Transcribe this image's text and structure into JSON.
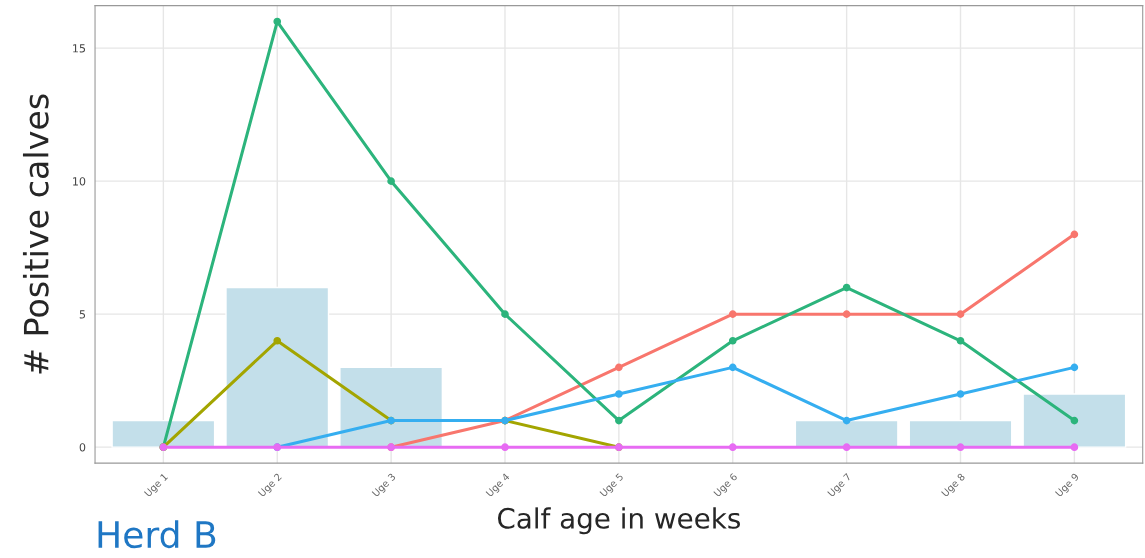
{
  "chart_data": {
    "type": "line",
    "xlabel": "Calf age in weeks",
    "ylabel": "# Positive calves",
    "categories": [
      "Uge 1",
      "Uge 2",
      "Uge 3",
      "Uge 4",
      "Uge 5",
      "Uge 6",
      "Uge 7",
      "Uge 8",
      "Uge 9"
    ],
    "series": [
      {
        "type": "bar",
        "color": "#c3dfea",
        "values": [
          1,
          6,
          3,
          0,
          0,
          0,
          1,
          1,
          2
        ]
      },
      {
        "color": "#f8766d",
        "values": [
          null,
          null,
          0,
          1,
          3,
          5,
          5,
          5,
          8
        ]
      },
      {
        "color": "#2cb47c",
        "values": [
          0,
          16,
          10,
          5,
          1,
          4,
          6,
          4,
          1
        ]
      },
      {
        "color": "#a3a500",
        "values": [
          0,
          4,
          1,
          1,
          0,
          null,
          null,
          null,
          null
        ]
      },
      {
        "color": "#35aef0",
        "values": [
          null,
          0,
          1,
          1,
          2,
          3,
          1,
          2,
          3
        ]
      },
      {
        "color": "#e76bf3",
        "values": [
          0,
          0,
          0,
          0,
          0,
          0,
          0,
          0,
          0
        ]
      }
    ],
    "ylim": [
      -0.6,
      16.6
    ],
    "yticks": [
      0,
      5,
      10,
      15
    ],
    "grid": true,
    "marker": "circle",
    "line_style": "solid",
    "annotations": [
      "Herd B"
    ]
  }
}
